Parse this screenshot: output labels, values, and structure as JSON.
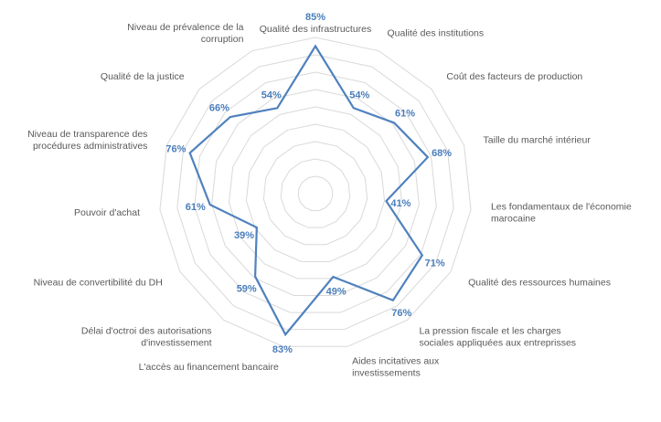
{
  "chart_data": {
    "type": "radar",
    "categories": [
      "Qualité des infrastructures",
      "Qualité des institutions",
      "Coût des facteurs de production",
      "Taille du marché intérieur",
      "Les fondamentaux de l'économie marocaine",
      "Qualité des ressources humaines",
      "La pression fiscale et les charges sociales appliquées aux entreprises",
      "Aides incitatives aux investissements",
      "L'accès au financement bancaire",
      "Délai d'octroi des autorisations d'investissement",
      "Niveau de convertibilité du DH",
      "Pouvoir d'achat",
      "Niveau de transparence des procédures administratives",
      "Qualité de la justice",
      "Niveau de prévalence de la corruption"
    ],
    "category_lines": [
      [
        "Qualité des infrastructures"
      ],
      [
        "Qualité des institutions"
      ],
      [
        "Coût des facteurs de production"
      ],
      [
        "Taille du marché intérieur"
      ],
      [
        "Les fondamentaux de l'économie",
        "marocaine"
      ],
      [
        "Qualité des ressources humaines"
      ],
      [
        "La pression fiscale et les charges",
        "sociales appliquées aux entreprisses"
      ],
      [
        "Aides incitatives aux",
        "investissements"
      ],
      [
        "L'accès au financement bancaire"
      ],
      [
        "Délai d'octroi des autorisations",
        "d'investissement"
      ],
      [
        "Niveau de convertibilité du DH"
      ],
      [
        "Pouvoir d'achat"
      ],
      [
        "Niveau de transparence des",
        "procédures administratives"
      ],
      [
        "Qualité de la justice"
      ],
      [
        "Niveau de prévalence de la",
        "corruption"
      ]
    ],
    "values": [
      85,
      54,
      61,
      68,
      41,
      71,
      76,
      49,
      83,
      59,
      39,
      61,
      76,
      66,
      54
    ],
    "value_labels": [
      "85%",
      "54%",
      "61%",
      "68%",
      "41%",
      "71%",
      "76%",
      "49%",
      "83%",
      "59%",
      "39%",
      "61%",
      "76%",
      "66%",
      "54%"
    ],
    "rmax": 90,
    "ring_step": 10,
    "grid": true,
    "series_color": "#4f81bd",
    "grid_color": "#d9d9d9"
  }
}
